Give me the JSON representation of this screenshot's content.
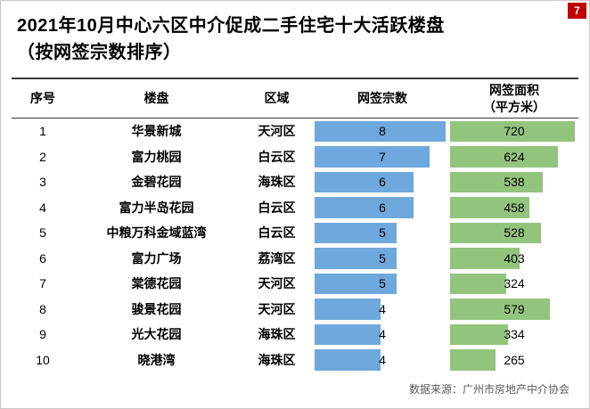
{
  "page_badge": "7",
  "title": {
    "line1": "2021年10月中心六区中介促成二手住宅十大活跃楼盘",
    "line2": "（按网签宗数排序）"
  },
  "source": "数据来源：广州市房地产中介协会",
  "colors": {
    "bar_blue": "#6FA8DC",
    "bar_green": "#93C47D",
    "badge_red": "#C00000",
    "rule_dark": "#3a3a3a"
  },
  "chart_data": {
    "type": "table",
    "title": "2021年10月中心六区中介促成二手住宅十大活跃楼盘（按网签宗数排序）",
    "columns": [
      "序号",
      "楼盘",
      "区域",
      "网签宗数",
      "网签面积（平方米）"
    ],
    "area_header_lines": [
      "网签面积",
      "（平方米）"
    ],
    "count_max": 8,
    "area_max": 720,
    "bar_colors": {
      "count": "#6FA8DC",
      "area": "#93C47D"
    },
    "rows": [
      {
        "no": "1",
        "name": "华景新城",
        "district": "天河区",
        "count": 8,
        "area": 720
      },
      {
        "no": "2",
        "name": "富力桃园",
        "district": "白云区",
        "count": 7,
        "area": 624
      },
      {
        "no": "3",
        "name": "金碧花园",
        "district": "海珠区",
        "count": 6,
        "area": 538
      },
      {
        "no": "4",
        "name": "富力半岛花园",
        "district": "白云区",
        "count": 6,
        "area": 458
      },
      {
        "no": "5",
        "name": "中粮万科金域蓝湾",
        "district": "白云区",
        "count": 5,
        "area": 528
      },
      {
        "no": "6",
        "name": "富力广场",
        "district": "荔湾区",
        "count": 5,
        "area": 403
      },
      {
        "no": "7",
        "name": "棠德花园",
        "district": "天河区",
        "count": 5,
        "area": 324
      },
      {
        "no": "8",
        "name": "骏景花园",
        "district": "天河区",
        "count": 4,
        "area": 579
      },
      {
        "no": "9",
        "name": "光大花园",
        "district": "海珠区",
        "count": 4,
        "area": 334
      },
      {
        "no": "10",
        "name": "晓港湾",
        "district": "海珠区",
        "count": 4,
        "area": 265
      }
    ]
  }
}
